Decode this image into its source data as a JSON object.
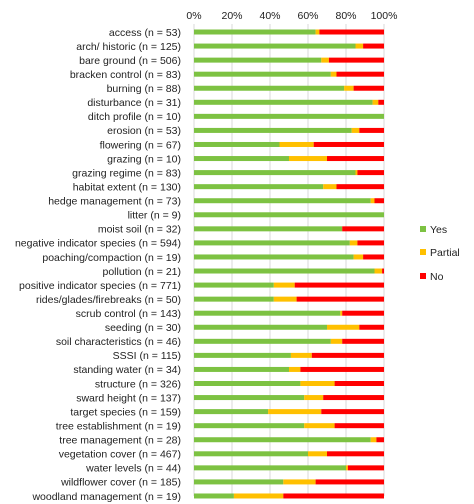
{
  "chart_data": {
    "type": "bar",
    "orientation": "horizontal",
    "stacked": true,
    "title": "",
    "xlabel": "",
    "ylabel": "",
    "xlim": [
      0,
      100
    ],
    "x_ticks": [
      "0%",
      "20%",
      "40%",
      "60%",
      "80%",
      "100%"
    ],
    "x_axis_position": "top",
    "grid": true,
    "legend_position": "right",
    "categories": [
      "access (n = 53)",
      "arch/ historic (n = 125)",
      "bare ground (n = 506)",
      "bracken control (n = 83)",
      "burning (n = 88)",
      "disturbance (n = 31)",
      "ditch profile (n = 10)",
      "erosion (n = 53)",
      "flowering (n = 67)",
      "grazing (n = 10)",
      "grazing regime (n = 83)",
      "habitat extent (n = 130)",
      "hedge management (n = 73)",
      "litter (n = 9)",
      "moist soil (n = 32)",
      "negative indicator species (n = 594)",
      "poaching/compaction (n = 19)",
      "pollution (n = 21)",
      "positive indicator species (n = 771)",
      "rides/glades/firebreaks (n = 50)",
      "scrub control (n = 143)",
      "seeding (n = 30)",
      "soil characteristics (n = 46)",
      "SSSI (n = 115)",
      "standing water (n = 34)",
      "structure (n = 326)",
      "sward height (n = 137)",
      "target species (n = 159)",
      "tree establishment (n = 19)",
      "tree management (n = 28)",
      "vegetation cover (n = 467)",
      "water levels (n = 44)",
      "wildflower cover (n = 185)",
      "woodland management (n = 19)"
    ],
    "series": [
      {
        "name": "Yes",
        "color": "#7dc242",
        "values": [
          64,
          85,
          67,
          72,
          79,
          94,
          100,
          83,
          45,
          50,
          85,
          68,
          93,
          100,
          78,
          82,
          84,
          95,
          42,
          42,
          77,
          70,
          72,
          51,
          50,
          56,
          58,
          39,
          58,
          93,
          60,
          80,
          47,
          21
        ]
      },
      {
        "name": "Partial",
        "color": "#ffc000",
        "values": [
          2,
          4,
          4,
          3,
          5,
          3,
          0,
          4,
          18,
          20,
          1,
          7,
          2,
          0,
          0,
          4,
          5,
          4,
          11,
          12,
          1,
          17,
          6,
          11,
          6,
          18,
          10,
          28,
          16,
          3,
          10,
          1,
          17,
          26
        ]
      },
      {
        "name": "No",
        "color": "#ff0000",
        "values": [
          34,
          11,
          29,
          25,
          16,
          3,
          0,
          13,
          37,
          30,
          14,
          25,
          5,
          0,
          22,
          14,
          11,
          1,
          47,
          46,
          22,
          13,
          22,
          38,
          44,
          26,
          32,
          33,
          26,
          4,
          30,
          19,
          36,
          53
        ]
      }
    ]
  }
}
